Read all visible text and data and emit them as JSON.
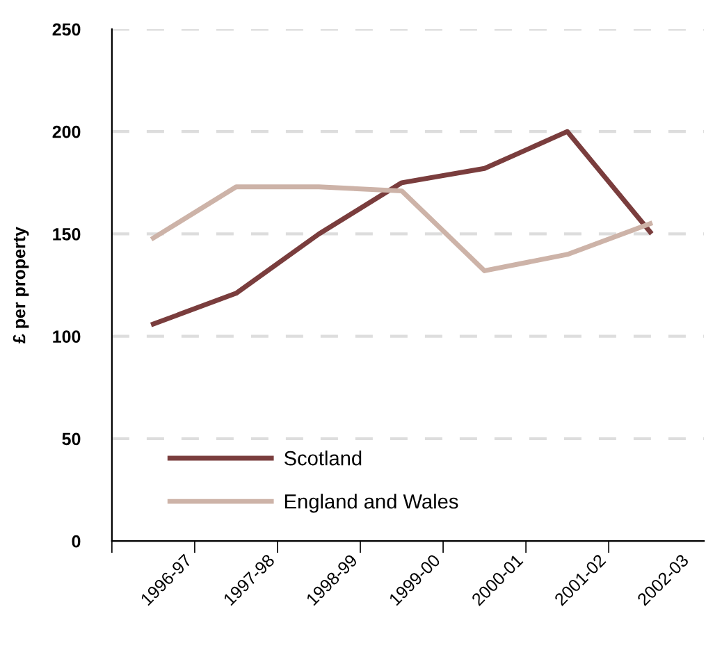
{
  "chart_data": {
    "type": "line",
    "ylabel": "£ per property",
    "categories": [
      "1996-97",
      "1997-98",
      "1998-99",
      "1999-00",
      "2000-01",
      "2001-02",
      "2002-03"
    ],
    "series": [
      {
        "name": "Scotland",
        "color": "#7a3d3d",
        "values": [
          106,
          121,
          150,
          175,
          182,
          200,
          151
        ]
      },
      {
        "name": "England and Wales",
        "color": "#cdb3a8",
        "values": [
          148,
          173,
          173,
          171,
          132,
          140,
          155
        ]
      }
    ],
    "ylim": [
      0,
      250
    ],
    "yticks": [
      0,
      50,
      100,
      150,
      200,
      250
    ],
    "grid": "y",
    "legend": "bottom left",
    "marker": "none",
    "line_style": "solid"
  }
}
